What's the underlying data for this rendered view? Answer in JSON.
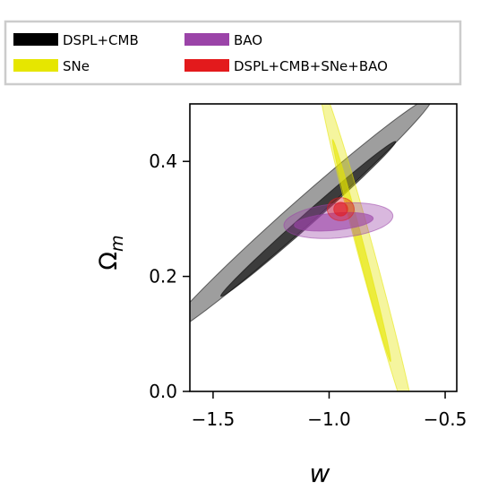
{
  "chart_data": {
    "type": "contour",
    "title": "",
    "xlabel": "w",
    "ylabel": "Ω",
    "ylabel_subscript": "m",
    "xlim": [
      -1.6,
      -0.45
    ],
    "ylim": [
      0.0,
      0.5
    ],
    "xticks": [
      -1.5,
      -1.0,
      -0.5
    ],
    "xtick_labels": [
      "−1.5",
      "−1.0",
      "−0.5"
    ],
    "yticks": [
      0.0,
      0.2,
      0.4
    ],
    "ytick_labels": [
      "0.0",
      "0.2",
      "0.4"
    ],
    "grid": false,
    "legend_position": "top",
    "series": [
      {
        "name": "DSPL+CMB",
        "color": "#000000",
        "contours": [
          {
            "level": "1-sigma",
            "center": [
              -1.09,
              0.3
            ],
            "semi_axes": [
              0.4,
              0.013
            ],
            "angle_deg": 19.6
          },
          {
            "level": "2-sigma",
            "center": [
              -1.13,
              0.305
            ],
            "semi_axes": [
              0.61,
              0.028
            ],
            "angle_deg": 19.6
          }
        ]
      },
      {
        "name": "SNe",
        "color": "#e6e600",
        "contours": [
          {
            "level": "1-sigma",
            "center": [
              -0.86,
              0.245
            ],
            "semi_axes": [
              0.23,
              0.013
            ],
            "angle_deg": -57
          },
          {
            "level": "2-sigma",
            "center": [
              -0.83,
              0.225
            ],
            "semi_axes": [
              0.38,
              0.03
            ],
            "angle_deg": -56
          }
        ]
      },
      {
        "name": "BAO",
        "color": "#9b44a8",
        "contours": [
          {
            "level": "1-sigma",
            "center": [
              -0.98,
              0.295
            ],
            "semi_axes": [
              0.17,
              0.015
            ],
            "angle_deg": 2
          },
          {
            "level": "2-sigma",
            "center": [
              -0.96,
              0.297
            ],
            "semi_axes": [
              0.235,
              0.03
            ],
            "angle_deg": 2
          }
        ]
      },
      {
        "name": "DSPL+CMB+SNe+BAO",
        "color": "#e31a1c",
        "contours": [
          {
            "level": "1-sigma",
            "center": [
              -0.95,
              0.317
            ],
            "semi_axes": [
              0.03,
              0.012
            ],
            "angle_deg": 0
          },
          {
            "level": "2-sigma",
            "center": [
              -0.95,
              0.317
            ],
            "semi_axes": [
              0.058,
              0.02
            ],
            "angle_deg": 0
          }
        ]
      }
    ]
  },
  "legend": {
    "items": [
      {
        "label": "DSPL+CMB",
        "color": "#000000"
      },
      {
        "label": "BAO",
        "color": "#9b44a8"
      },
      {
        "label": "SNe",
        "color": "#e6e600"
      },
      {
        "label": "DSPL+CMB+SNe+BAO",
        "color": "#e31a1c"
      }
    ]
  }
}
